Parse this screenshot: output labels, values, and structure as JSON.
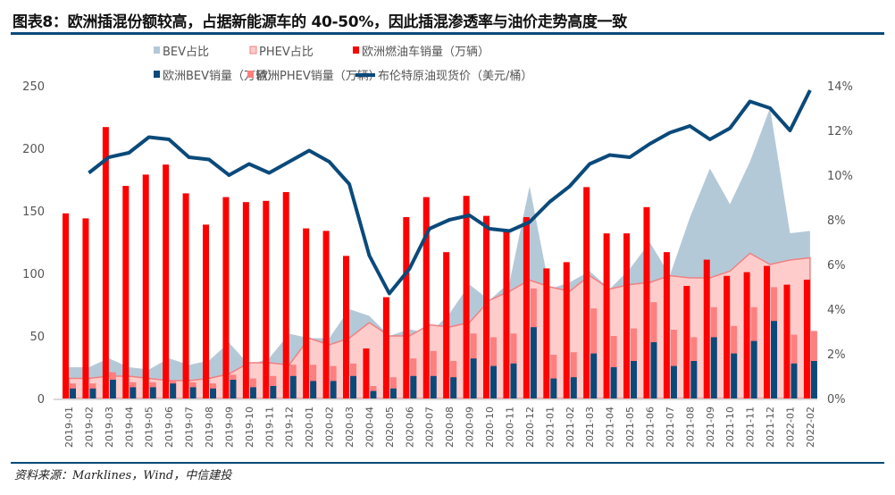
{
  "title": "图表8：欧洲插混份额较高，占据新能源车的 40-50%，因此插混渗透率与油价走势高度一致",
  "source": "资料来源：Marklines，Wind，中信建投",
  "chart_data": {
    "type": "bar",
    "categories": [
      "2019-01",
      "2019-02",
      "2019-03",
      "2019-04",
      "2019-05",
      "2019-06",
      "2019-07",
      "2019-08",
      "2019-09",
      "2019-10",
      "2019-11",
      "2019-12",
      "2020-01",
      "2020-02",
      "2020-03",
      "2020-04",
      "2020-05",
      "2020-06",
      "2020-07",
      "2020-08",
      "2020-09",
      "2020-10",
      "2020-11",
      "2020-12",
      "2021-01",
      "2021-02",
      "2021-03",
      "2021-04",
      "2021-05",
      "2021-06",
      "2021-07",
      "2021-08",
      "2021-09",
      "2021-10",
      "2021-11",
      "2021-12",
      "2022-01",
      "2022-02"
    ],
    "left_axis": {
      "ylim": [
        0,
        250
      ],
      "ticks": [
        0,
        50,
        100,
        150,
        200,
        250
      ]
    },
    "right_axis": {
      "ylim": [
        0,
        14
      ],
      "ticks": [
        "0%",
        "2%",
        "4%",
        "6%",
        "8%",
        "10%",
        "12%",
        "14%"
      ]
    },
    "grid": false,
    "legend_position": "top",
    "series": [
      {
        "name": "BEV占比",
        "type": "area",
        "axis": "right",
        "color": "#b4c9d8",
        "values": [
          1.4,
          1.4,
          1.8,
          1.4,
          1.3,
          1.8,
          1.5,
          1.7,
          2.5,
          1.5,
          1.8,
          2.9,
          2.7,
          2.7,
          4.0,
          3.7,
          2.8,
          3.1,
          2.9,
          3.8,
          5.1,
          4.4,
          5.2,
          9.5,
          4.9,
          5.2,
          5.7,
          4.9,
          5.8,
          7.0,
          5.5,
          8.1,
          10.3,
          8.7,
          10.6,
          13.0,
          7.4,
          7.5
        ]
      },
      {
        "name": "PHEV占比",
        "type": "area",
        "axis": "right",
        "color": "#ffcccc",
        "edge": "#f08080",
        "values": [
          0.9,
          0.9,
          1.0,
          1.0,
          0.9,
          0.8,
          0.8,
          0.9,
          1.1,
          1.6,
          1.6,
          1.5,
          2.7,
          2.4,
          2.7,
          3.4,
          2.8,
          2.8,
          3.3,
          3.2,
          3.4,
          4.4,
          4.8,
          5.3,
          5.0,
          4.8,
          5.5,
          4.9,
          5.1,
          5.2,
          5.5,
          5.4,
          5.4,
          5.7,
          6.5,
          6.0,
          6.2,
          6.3
        ]
      },
      {
        "name": "欧洲燃油车销量（万辆）",
        "type": "bar",
        "axis": "left",
        "color": "#ff0000",
        "values": [
          148,
          144,
          217,
          170,
          179,
          187,
          164,
          139,
          161,
          157,
          158,
          165,
          136,
          134,
          114,
          40,
          81,
          145,
          161,
          117,
          162,
          146,
          134,
          145,
          104,
          109,
          169,
          132,
          132,
          153,
          117,
          90,
          111,
          98,
          101,
          106,
          91,
          95
        ]
      },
      {
        "name": "欧洲BEV销量（万辆）",
        "type": "bar",
        "axis": "left",
        "color": "#0a4a7a",
        "values": [
          8,
          8,
          15,
          9,
          9,
          12,
          9,
          8,
          15,
          9,
          10,
          18,
          14,
          14,
          18,
          6,
          8,
          18,
          18,
          17,
          32,
          26,
          28,
          57,
          16,
          17,
          36,
          25,
          30,
          45,
          26,
          30,
          49,
          36,
          46,
          62,
          28,
          30
        ]
      },
      {
        "name": "欧洲PHEV销量（万辆）",
        "type": "bar",
        "axis": "left",
        "color": "#ff7f7f",
        "values": [
          12,
          12,
          21,
          13,
          13,
          14,
          13,
          12,
          19,
          16,
          18,
          27,
          27,
          26,
          28,
          10,
          17,
          32,
          38,
          30,
          52,
          49,
          52,
          88,
          35,
          37,
          72,
          50,
          56,
          77,
          55,
          49,
          73,
          58,
          73,
          89,
          51,
          54
        ]
      },
      {
        "name": "布伦特原油现货价（美元/桶）",
        "type": "line",
        "axis": "right",
        "color": "#0a4a7a",
        "values": [
          null,
          10.1,
          10.8,
          11.0,
          11.7,
          11.6,
          10.8,
          10.7,
          10.0,
          10.5,
          10.1,
          10.6,
          11.1,
          10.6,
          9.6,
          6.4,
          4.7,
          5.8,
          7.6,
          8.0,
          8.2,
          7.6,
          7.5,
          7.9,
          8.8,
          9.5,
          10.5,
          10.9,
          10.8,
          11.4,
          11.9,
          12.2,
          11.6,
          12.1,
          13.3,
          13.0,
          12.0,
          13.8
        ]
      }
    ]
  }
}
